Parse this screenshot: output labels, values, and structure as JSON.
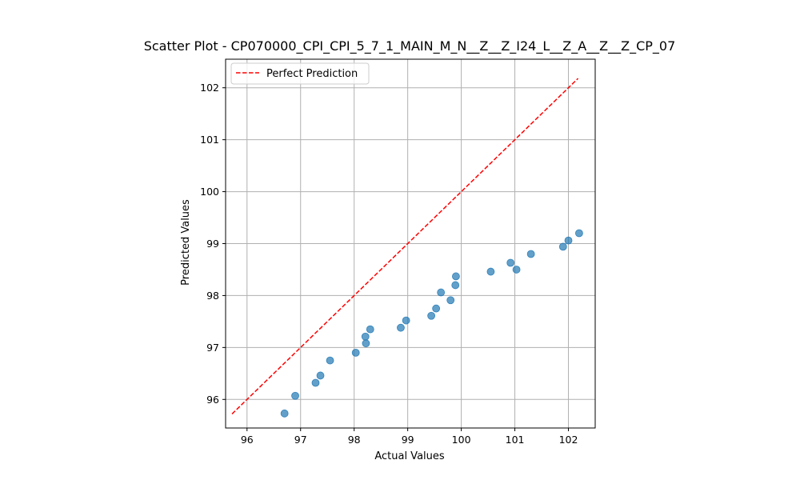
{
  "chart_data": {
    "type": "scatter",
    "title": "Scatter Plot - CP070000_CPI_CPI_5_7_1_MAIN_M_N__Z__Z_I24_L__Z_A__Z__Z_CP_07",
    "xlabel": "Actual Values",
    "ylabel": "Predicted Values",
    "xlim": [
      95.6,
      102.5
    ],
    "ylim": [
      95.45,
      102.55
    ],
    "xticks": [
      96,
      97,
      98,
      99,
      100,
      101,
      102
    ],
    "yticks": [
      96,
      97,
      98,
      99,
      100,
      101,
      102
    ],
    "grid": true,
    "legend": {
      "placement": "top-left",
      "entries": [
        "Perfect Prediction"
      ]
    },
    "colors": {
      "points": "#1f77b4",
      "line": "#ff0000",
      "grid": "#b0b0b0"
    },
    "series": [
      {
        "kind": "points",
        "x": [
          96.7,
          96.9,
          97.28,
          97.37,
          97.55,
          98.03,
          98.22,
          98.21,
          98.3,
          98.87,
          98.97,
          99.44,
          99.53,
          99.62,
          99.8,
          99.89,
          99.9,
          100.55,
          100.92,
          101.03,
          101.3,
          101.9,
          102.0,
          102.2
        ],
        "y": [
          95.73,
          96.07,
          96.32,
          96.46,
          96.75,
          96.9,
          97.08,
          97.21,
          97.35,
          97.38,
          97.52,
          97.61,
          97.75,
          98.06,
          97.91,
          98.2,
          98.37,
          98.46,
          98.63,
          98.5,
          98.8,
          98.94,
          99.06,
          99.2
        ]
      },
      {
        "kind": "line",
        "name": "Perfect Prediction",
        "x": [
          95.72,
          102.18
        ],
        "y": [
          95.72,
          102.18
        ]
      }
    ]
  }
}
